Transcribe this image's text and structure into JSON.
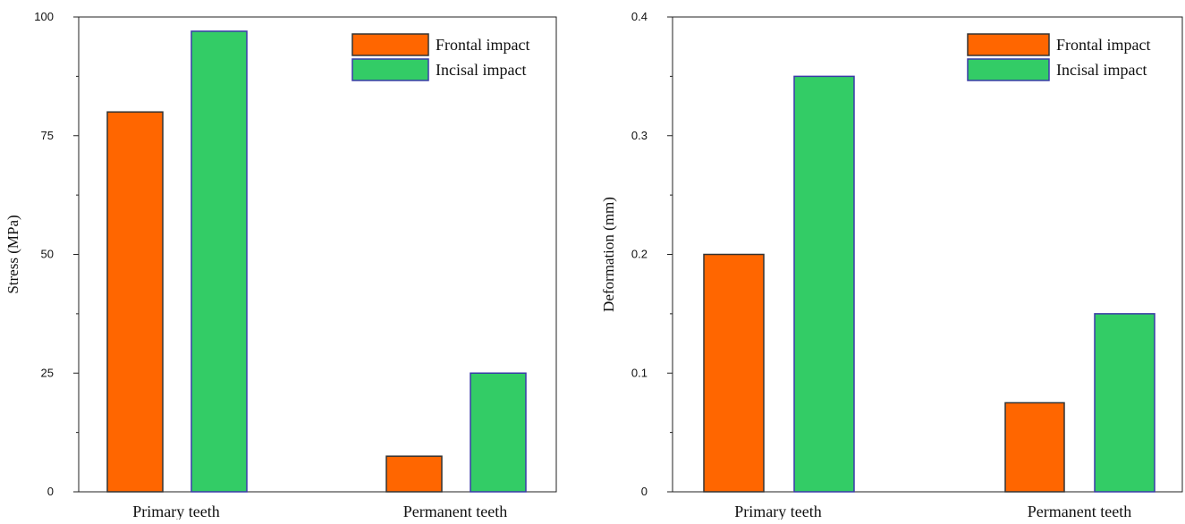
{
  "colors": {
    "frontal": "#ff6600",
    "incisal": "#33cc66",
    "frontal_edge": "#333333",
    "incisal_edge": "#3a3aa8"
  },
  "chart_data": [
    {
      "type": "bar",
      "categories": [
        "Primary teeth",
        "Permanent teeth"
      ],
      "series": [
        {
          "name": "Frontal impact",
          "values": [
            80,
            7.5
          ]
        },
        {
          "name": "Incisal impact",
          "values": [
            97,
            25
          ]
        }
      ],
      "title": "",
      "xlabel": "",
      "ylabel": "Stress (MPa)",
      "ylim": [
        0,
        100
      ],
      "yticks": [
        0,
        25,
        50,
        75,
        100
      ],
      "ytick_labels": [
        "0",
        "25",
        "50",
        "75",
        "100"
      ],
      "legend": "top-right",
      "grid": false
    },
    {
      "type": "bar",
      "categories": [
        "Primary teeth",
        "Permanent teeth"
      ],
      "series": [
        {
          "name": "Frontal impact",
          "values": [
            0.2,
            0.075
          ]
        },
        {
          "name": "Incisal impact",
          "values": [
            0.35,
            0.15
          ]
        }
      ],
      "title": "",
      "xlabel": "",
      "ylabel": "Deformation (mm)",
      "ylim": [
        0,
        0.4
      ],
      "yticks": [
        0,
        0.1,
        0.2,
        0.3,
        0.4
      ],
      "ytick_labels": [
        "0",
        "0.1",
        "0.2",
        "0.3",
        "0.4"
      ],
      "legend": "top-right",
      "grid": false
    }
  ]
}
